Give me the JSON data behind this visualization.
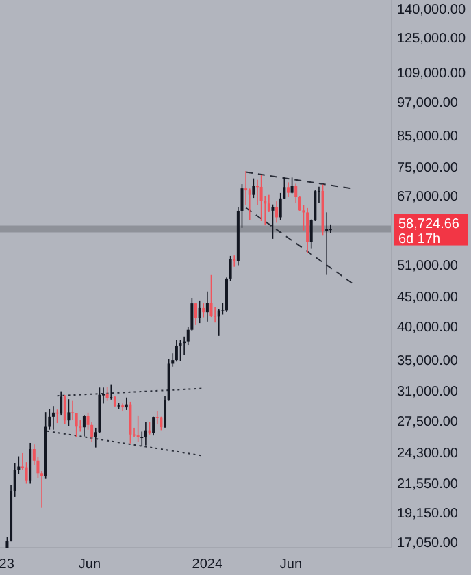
{
  "chart_data": {
    "type": "candlestick",
    "x": [
      "2023-01-02",
      "2023-01-09",
      "2023-01-16",
      "2023-01-23",
      "2023-01-30",
      "2023-02-06",
      "2023-02-13",
      "2023-02-20",
      "2023-02-27",
      "2023-03-06",
      "2023-03-13",
      "2023-03-20",
      "2023-03-27",
      "2023-04-03",
      "2023-04-10",
      "2023-04-17",
      "2023-04-24",
      "2023-05-01",
      "2023-05-08",
      "2023-05-15",
      "2023-05-22",
      "2023-05-29",
      "2023-06-05",
      "2023-06-12",
      "2023-06-19",
      "2023-06-26",
      "2023-07-03",
      "2023-07-10",
      "2023-07-17",
      "2023-07-24",
      "2023-07-31",
      "2023-08-07",
      "2023-08-14",
      "2023-08-21",
      "2023-08-28",
      "2023-09-04",
      "2023-09-11",
      "2023-09-18",
      "2023-09-25",
      "2023-10-02",
      "2023-10-09",
      "2023-10-16",
      "2023-10-23",
      "2023-10-30",
      "2023-11-06",
      "2023-11-13",
      "2023-11-20",
      "2023-11-27",
      "2023-12-04",
      "2023-12-11",
      "2023-12-18",
      "2023-12-25",
      "2024-01-01",
      "2024-01-08",
      "2024-01-15",
      "2024-01-22",
      "2024-01-29",
      "2024-02-05",
      "2024-02-12",
      "2024-02-19",
      "2024-02-26",
      "2024-03-04",
      "2024-03-11",
      "2024-03-18",
      "2024-03-25",
      "2024-04-01",
      "2024-04-08",
      "2024-04-15",
      "2024-04-22",
      "2024-04-29",
      "2024-05-06",
      "2024-05-13",
      "2024-05-20",
      "2024-05-27",
      "2024-06-03",
      "2024-06-10",
      "2024-06-17",
      "2024-06-24",
      "2024-07-01",
      "2024-07-08",
      "2024-07-15",
      "2024-07-22",
      "2024-07-29",
      "2024-08-05",
      "2024-08-12"
    ],
    "ohlc": [
      [
        16600,
        17400,
        16500,
        17130
      ],
      [
        17130,
        21400,
        17100,
        20880
      ],
      [
        20880,
        23300,
        20400,
        22700
      ],
      [
        22700,
        23950,
        22300,
        23000
      ],
      [
        23000,
        24250,
        22700,
        22930
      ],
      [
        22930,
        23400,
        21500,
        21780
      ],
      [
        21780,
        25250,
        21500,
        24640
      ],
      [
        24640,
        25100,
        23100,
        23550
      ],
      [
        23550,
        23900,
        21950,
        22400
      ],
      [
        22400,
        22600,
        19550,
        22150
      ],
      [
        22150,
        28500,
        21900,
        26900
      ],
      [
        26900,
        28900,
        26600,
        27990
      ],
      [
        27990,
        29200,
        26600,
        28450
      ],
      [
        28450,
        28800,
        27300,
        28330
      ],
      [
        28330,
        30950,
        28200,
        30300
      ],
      [
        30300,
        30500,
        27200,
        27590
      ],
      [
        27590,
        30000,
        26950,
        28480
      ],
      [
        28480,
        29800,
        27650,
        28430
      ],
      [
        28430,
        28430,
        25850,
        26920
      ],
      [
        26920,
        27600,
        26400,
        26850
      ],
      [
        26850,
        28200,
        25900,
        28080
      ],
      [
        28080,
        28450,
        26600,
        27100
      ],
      [
        27100,
        27400,
        25350,
        25840
      ],
      [
        25840,
        26800,
        24800,
        26340
      ],
      [
        26340,
        31400,
        26250,
        30530
      ],
      [
        30530,
        31400,
        29500,
        30590
      ],
      [
        30590,
        31500,
        29800,
        30170
      ],
      [
        30170,
        31800,
        29950,
        30250
      ],
      [
        30250,
        30350,
        29100,
        29220
      ],
      [
        29220,
        29550,
        28900,
        29280
      ],
      [
        29280,
        29500,
        28600,
        29050
      ],
      [
        29050,
        30200,
        28750,
        29400
      ],
      [
        29400,
        29700,
        25200,
        26100
      ],
      [
        26100,
        26800,
        25800,
        26000
      ],
      [
        26000,
        28140,
        25350,
        25830
      ],
      [
        25830,
        26400,
        24900,
        25840
      ],
      [
        25840,
        27450,
        25000,
        26530
      ],
      [
        26530,
        27450,
        26100,
        26250
      ],
      [
        26250,
        28000,
        26000,
        27970
      ],
      [
        27970,
        28600,
        27200,
        27930
      ],
      [
        27930,
        28000,
        26550,
        26860
      ],
      [
        26860,
        30350,
        26800,
        29900
      ],
      [
        29900,
        35200,
        29800,
        34500
      ],
      [
        34500,
        35950,
        34100,
        35000
      ],
      [
        35000,
        37950,
        34800,
        37060
      ],
      [
        37060,
        37950,
        34900,
        37450
      ],
      [
        37450,
        38400,
        35700,
        37700
      ],
      [
        37700,
        39900,
        37150,
        39460
      ],
      [
        39460,
        44700,
        39300,
        43800
      ],
      [
        43800,
        43800,
        40200,
        41370
      ],
      [
        41370,
        44300,
        40500,
        43000
      ],
      [
        43000,
        43800,
        41450,
        42280
      ],
      [
        42280,
        45900,
        40750,
        43900
      ],
      [
        43900,
        48970,
        41500,
        41730
      ],
      [
        41730,
        43200,
        40600,
        41580
      ],
      [
        41580,
        42800,
        38500,
        42580
      ],
      [
        42580,
        43850,
        41900,
        42600
      ],
      [
        42600,
        48500,
        42300,
        48300
      ],
      [
        48300,
        52800,
        47800,
        52130
      ],
      [
        52130,
        52900,
        50600,
        51730
      ],
      [
        51730,
        64000,
        50900,
        63100
      ],
      [
        63100,
        70100,
        59000,
        68950
      ],
      [
        68950,
        73800,
        64600,
        68400
      ],
      [
        68400,
        68900,
        60800,
        67200
      ],
      [
        67200,
        71700,
        66400,
        69600
      ],
      [
        69600,
        71300,
        64500,
        69360
      ],
      [
        69360,
        72800,
        60600,
        65650
      ],
      [
        65650,
        66900,
        59600,
        64940
      ],
      [
        64940,
        67200,
        62800,
        63120
      ],
      [
        63120,
        64700,
        56500,
        63980
      ],
      [
        63980,
        65500,
        60200,
        61500
      ],
      [
        61500,
        67700,
        60800,
        66270
      ],
      [
        66270,
        71950,
        66100,
        69300
      ],
      [
        69300,
        70600,
        66600,
        67750
      ],
      [
        67750,
        71950,
        67600,
        69650
      ],
      [
        69650,
        70200,
        65000,
        66600
      ],
      [
        66600,
        66900,
        63100,
        63200
      ],
      [
        63200,
        64500,
        58400,
        62680
      ],
      [
        62680,
        63800,
        53500,
        55850
      ],
      [
        55850,
        61000,
        54300,
        60800
      ],
      [
        60800,
        68400,
        60600,
        68200
      ],
      [
        68200,
        69400,
        65100,
        68250
      ],
      [
        68250,
        70000,
        57200,
        58200
      ],
      [
        58200,
        62700,
        49000,
        58700
      ],
      [
        58700,
        59800,
        57800,
        58724.66
      ]
    ],
    "colors": [
      "#131722",
      "#131722",
      "#131722",
      "#131722",
      "#f0545c",
      "#f0545c",
      "#131722",
      "#f0545c",
      "#f0545c",
      "#f0545c",
      "#131722",
      "#131722",
      "#131722",
      "#f0545c",
      "#131722",
      "#f0545c",
      "#131722",
      "#f0545c",
      "#f0545c",
      "#f0545c",
      "#131722",
      "#f0545c",
      "#f0545c",
      "#131722",
      "#131722",
      "#131722",
      "#f0545c",
      "#131722",
      "#f0545c",
      "#131722",
      "#f0545c",
      "#131722",
      "#f0545c",
      "#f0545c",
      "#f0545c",
      "#131722",
      "#131722",
      "#f0545c",
      "#131722",
      "#f0545c",
      "#f0545c",
      "#131722",
      "#131722",
      "#131722",
      "#131722",
      "#131722",
      "#131722",
      "#131722",
      "#131722",
      "#f0545c",
      "#131722",
      "#f0545c",
      "#131722",
      "#f0545c",
      "#f0545c",
      "#131722",
      "#131722",
      "#131722",
      "#131722",
      "#f0545c",
      "#131722",
      "#131722",
      "#f0545c",
      "#f0545c",
      "#131722",
      "#f0545c",
      "#f0545c",
      "#f0545c",
      "#f0545c",
      "#131722",
      "#f0545c",
      "#131722",
      "#131722",
      "#f0545c",
      "#131722",
      "#f0545c",
      "#f0545c",
      "#f0545c",
      "#f0545c",
      "#131722",
      "#131722",
      "#131722",
      "#f0545c",
      "#131722",
      "#131722"
    ],
    "series": [
      {
        "type": "line",
        "x": [
          "2023-04-03",
          "2023-12-25"
        ],
        "values": [
          30400,
          31300
        ],
        "color": "#2a2e39",
        "line_style": "dotted"
      },
      {
        "type": "line",
        "x": [
          "2023-03-16",
          "2023-12-25"
        ],
        "values": [
          26450,
          24000
        ],
        "color": "#2a2e39",
        "line_style": "dotted"
      },
      {
        "type": "line",
        "x": [
          "2024-03-11",
          "2024-09-20"
        ],
        "values": [
          73500,
          68900
        ],
        "color": "#2a2e39",
        "line_style": "dashed"
      },
      {
        "type": "line",
        "x": [
          "2024-03-11",
          "2024-09-20"
        ],
        "values": [
          63850,
          47450
        ],
        "color": "#2a2e39",
        "line_style": "dashed"
      }
    ],
    "log": "y",
    "xlim": [
      "2022-12-20",
      "2024-12-01"
    ],
    "xticks": [
      {
        "value": "2023-01-01",
        "label": "23"
      },
      {
        "value": "2023-06-01",
        "label": "Jun"
      },
      {
        "value": "2024-01-01",
        "label": "2024"
      },
      {
        "value": "2024-06-01",
        "label": "Jun"
      }
    ],
    "ylim": [
      16700,
      145000
    ],
    "yticks": [
      {
        "value": 17050,
        "label": "17,050.00"
      },
      {
        "value": 19150,
        "label": "19,150.00"
      },
      {
        "value": 21550,
        "label": "21,550.00"
      },
      {
        "value": 24300,
        "label": "24,300.00"
      },
      {
        "value": 27500,
        "label": "27,500.00"
      },
      {
        "value": 31000,
        "label": "31,000.00"
      },
      {
        "value": 35000,
        "label": "35,000.00"
      },
      {
        "value": 40000,
        "label": "40,000.00"
      },
      {
        "value": 45000,
        "label": "45,000.00"
      },
      {
        "value": 51000,
        "label": "51,000.00"
      },
      {
        "value": 67000,
        "label": "67,000.00"
      },
      {
        "value": 75000,
        "label": "75,000.00"
      },
      {
        "value": 85000,
        "label": "85,000.00"
      },
      {
        "value": 97000,
        "label": "97,000.00"
      },
      {
        "value": 109000,
        "label": "109,000.00"
      },
      {
        "value": 125000,
        "label": "125,000.00"
      },
      {
        "value": 140000,
        "label": "140,000.00"
      }
    ],
    "ref_lines": [
      {
        "axis": "y",
        "value": 58724.66,
        "label": "58,724.66",
        "color": "#8e9199"
      }
    ],
    "annotations": [
      "6d 17h"
    ],
    "grid": false
  }
}
